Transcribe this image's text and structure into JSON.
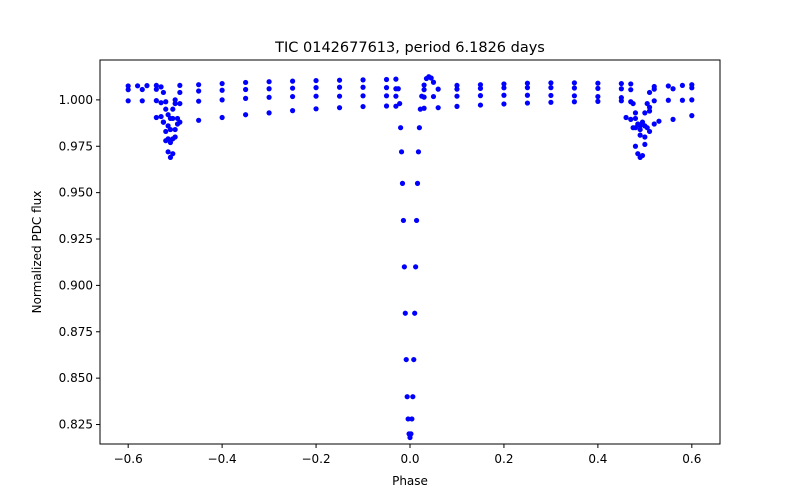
{
  "chart_data": {
    "type": "scatter",
    "title": "TIC 0142677613, period 6.1826 days",
    "xlabel": "Phase",
    "ylabel": "Normalized PDC flux",
    "xlim": [
      -0.66,
      0.66
    ],
    "ylim": [
      0.8145,
      1.0215
    ],
    "xticks": [
      -0.6,
      -0.4,
      -0.2,
      0.0,
      0.2,
      0.4,
      0.6
    ],
    "xtick_labels": [
      "−0.6",
      "−0.4",
      "−0.2",
      "0.0",
      "0.2",
      "0.4",
      "0.6"
    ],
    "yticks": [
      0.825,
      0.85,
      0.875,
      0.9,
      0.925,
      0.95,
      0.975,
      1.0
    ],
    "ytick_labels": [
      "0.825",
      "0.850",
      "0.875",
      "0.900",
      "0.925",
      "0.950",
      "0.975",
      "1.000"
    ],
    "grid": false,
    "series": [
      {
        "color": "#0000ff",
        "marker": "circle",
        "points": [
          [
            -0.6,
            1.0075
          ],
          [
            -0.58,
            1.0076
          ],
          [
            -0.56,
            1.0077
          ],
          [
            -0.54,
            1.0078
          ],
          [
            -0.53,
            1.007
          ],
          [
            -0.52,
            0.999
          ],
          [
            -0.515,
            0.992
          ],
          [
            -0.51,
            0.99
          ],
          [
            -0.505,
            0.995
          ],
          [
            -0.5,
            1.0
          ],
          [
            -0.49,
            1.0078
          ],
          [
            -0.45,
            1.0082
          ],
          [
            -0.4,
            1.0088
          ],
          [
            -0.35,
            1.0094
          ],
          [
            -0.3,
            1.0098
          ],
          [
            -0.25,
            1.0101
          ],
          [
            -0.2,
            1.0104
          ],
          [
            -0.15,
            1.0106
          ],
          [
            -0.1,
            1.0108
          ],
          [
            -0.05,
            1.011
          ],
          [
            -0.03,
            1.0112
          ],
          [
            -0.025,
            1.006
          ],
          [
            -0.022,
            0.998
          ],
          [
            -0.02,
            0.985
          ],
          [
            -0.018,
            0.972
          ],
          [
            -0.016,
            0.955
          ],
          [
            -0.014,
            0.935
          ],
          [
            -0.012,
            0.91
          ],
          [
            -0.01,
            0.885
          ],
          [
            -0.008,
            0.86
          ],
          [
            -0.006,
            0.84
          ],
          [
            -0.004,
            0.828
          ],
          [
            -0.002,
            0.82
          ],
          [
            0.0,
            0.818
          ],
          [
            0.002,
            0.82
          ],
          [
            0.004,
            0.828
          ],
          [
            0.006,
            0.84
          ],
          [
            0.008,
            0.86
          ],
          [
            0.01,
            0.885
          ],
          [
            0.012,
            0.91
          ],
          [
            0.014,
            0.935
          ],
          [
            0.016,
            0.955
          ],
          [
            0.018,
            0.972
          ],
          [
            0.02,
            0.985
          ],
          [
            0.022,
            0.995
          ],
          [
            0.025,
            1.002
          ],
          [
            0.03,
            1.008
          ],
          [
            0.035,
            1.0115
          ],
          [
            0.04,
            1.0125
          ],
          [
            0.045,
            1.0118
          ],
          [
            0.05,
            1.0095
          ],
          [
            0.1,
            1.0078
          ],
          [
            0.15,
            1.0082
          ],
          [
            0.2,
            1.0086
          ],
          [
            0.25,
            1.009
          ],
          [
            0.3,
            1.0092
          ],
          [
            0.35,
            1.0092
          ],
          [
            0.4,
            1.009
          ],
          [
            0.45,
            1.0088
          ],
          [
            0.47,
            1.0086
          ],
          [
            0.475,
            0.998
          ],
          [
            0.48,
            0.99
          ],
          [
            0.485,
            0.987
          ],
          [
            0.49,
            0.986
          ],
          [
            0.495,
            0.988
          ],
          [
            0.5,
            0.993
          ],
          [
            0.505,
            0.998
          ],
          [
            0.51,
            1.004
          ],
          [
            0.52,
            1.0072
          ],
          [
            0.55,
            1.0075
          ],
          [
            0.58,
            1.0078
          ],
          [
            0.6,
            1.0082
          ],
          [
            -0.6,
            1.0055
          ],
          [
            -0.57,
            1.0056
          ],
          [
            -0.54,
            1.0057
          ],
          [
            -0.525,
            1.004
          ],
          [
            -0.52,
            0.995
          ],
          [
            -0.515,
            0.986
          ],
          [
            -0.51,
            0.984
          ],
          [
            -0.505,
            0.99
          ],
          [
            -0.5,
            0.998
          ],
          [
            -0.49,
            1.004
          ],
          [
            -0.45,
            1.0048
          ],
          [
            -0.4,
            1.0052
          ],
          [
            -0.35,
            1.0056
          ],
          [
            -0.3,
            1.006
          ],
          [
            -0.25,
            1.0063
          ],
          [
            -0.2,
            1.0066
          ],
          [
            -0.15,
            1.0068
          ],
          [
            -0.1,
            1.0068
          ],
          [
            -0.05,
            1.0066
          ],
          [
            -0.03,
            1.006
          ],
          [
            0.03,
            1.0055
          ],
          [
            0.06,
            1.0058
          ],
          [
            0.1,
            1.0058
          ],
          [
            0.15,
            1.0062
          ],
          [
            0.2,
            1.0065
          ],
          [
            0.25,
            1.0066
          ],
          [
            0.3,
            1.0066
          ],
          [
            0.35,
            1.0064
          ],
          [
            0.4,
            1.0062
          ],
          [
            0.45,
            1.006
          ],
          [
            0.47,
            1.0055
          ],
          [
            0.48,
            0.993
          ],
          [
            0.49,
            0.984
          ],
          [
            0.5,
            0.986
          ],
          [
            0.51,
            0.996
          ],
          [
            0.52,
            1.0058
          ],
          [
            0.56,
            1.006
          ],
          [
            0.6,
            1.0065
          ],
          [
            -0.6,
            0.9995
          ],
          [
            -0.57,
            0.9995
          ],
          [
            -0.54,
            0.9996
          ],
          [
            -0.53,
            0.9985
          ],
          [
            -0.525,
            0.988
          ],
          [
            -0.52,
            0.978
          ],
          [
            -0.515,
            0.972
          ],
          [
            -0.51,
            0.969
          ],
          [
            -0.505,
            0.971
          ],
          [
            -0.5,
            0.98
          ],
          [
            -0.495,
            0.99
          ],
          [
            -0.49,
            0.998
          ],
          [
            -0.45,
            0.9993
          ],
          [
            -0.4,
            1.0
          ],
          [
            -0.35,
            1.0008
          ],
          [
            -0.3,
            1.0014
          ],
          [
            -0.25,
            1.0018
          ],
          [
            -0.2,
            1.002
          ],
          [
            -0.15,
            1.002
          ],
          [
            -0.1,
            1.0022
          ],
          [
            -0.05,
            1.0022
          ],
          [
            -0.03,
            1.002
          ],
          [
            0.03,
            1.0015
          ],
          [
            0.05,
            1.0018
          ],
          [
            0.1,
            1.002
          ],
          [
            0.15,
            1.0023
          ],
          [
            0.2,
            1.0025
          ],
          [
            0.25,
            1.0025
          ],
          [
            0.3,
            1.0024
          ],
          [
            0.35,
            1.0022
          ],
          [
            0.4,
            1.0018
          ],
          [
            0.45,
            1.0012
          ],
          [
            0.47,
            0.999
          ],
          [
            0.475,
            0.985
          ],
          [
            0.48,
            0.975
          ],
          [
            0.485,
            0.971
          ],
          [
            0.49,
            0.969
          ],
          [
            0.495,
            0.97
          ],
          [
            0.5,
            0.976
          ],
          [
            0.505,
            0.985
          ],
          [
            0.51,
            0.994
          ],
          [
            0.52,
            0.9995
          ],
          [
            0.55,
            0.9998
          ],
          [
            0.58,
            0.9998
          ],
          [
            0.6,
            1.0
          ],
          [
            -0.54,
            0.9905
          ],
          [
            -0.53,
            0.991
          ],
          [
            -0.525,
            0.988
          ],
          [
            -0.52,
            0.983
          ],
          [
            -0.515,
            0.979
          ],
          [
            -0.51,
            0.977
          ],
          [
            -0.505,
            0.979
          ],
          [
            -0.5,
            0.984
          ],
          [
            -0.495,
            0.987
          ],
          [
            -0.49,
            0.988
          ],
          [
            -0.45,
            0.989
          ],
          [
            -0.4,
            0.9905
          ],
          [
            -0.35,
            0.992
          ],
          [
            -0.3,
            0.993
          ],
          [
            -0.25,
            0.9942
          ],
          [
            -0.2,
            0.9952
          ],
          [
            -0.15,
            0.9958
          ],
          [
            -0.1,
            0.9964
          ],
          [
            -0.05,
            0.9967
          ],
          [
            -0.03,
            0.9966
          ],
          [
            0.03,
            0.9955
          ],
          [
            0.06,
            0.9958
          ],
          [
            0.1,
            0.9965
          ],
          [
            0.15,
            0.9972
          ],
          [
            0.2,
            0.9978
          ],
          [
            0.25,
            0.9983
          ],
          [
            0.3,
            0.9987
          ],
          [
            0.35,
            0.999
          ],
          [
            0.4,
            0.9992
          ],
          [
            0.45,
            0.9995
          ],
          [
            0.46,
            0.9905
          ],
          [
            0.47,
            0.9895
          ],
          [
            0.48,
            0.985
          ],
          [
            0.49,
            0.981
          ],
          [
            0.5,
            0.98
          ],
          [
            0.51,
            0.983
          ],
          [
            0.52,
            0.987
          ],
          [
            0.53,
            0.9885
          ],
          [
            0.56,
            0.9895
          ],
          [
            0.6,
            0.9915
          ]
        ]
      }
    ]
  }
}
